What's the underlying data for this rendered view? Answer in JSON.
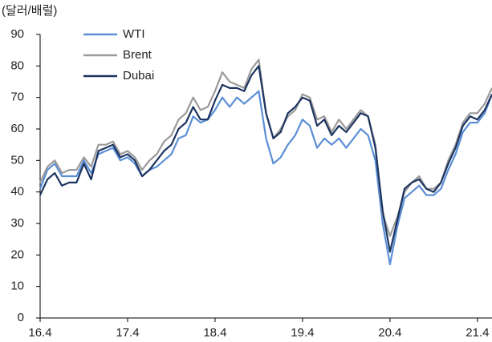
{
  "chart_data": {
    "type": "line",
    "y_label": "(달러/배럴)",
    "categories": [
      "16.4",
      null,
      null,
      null,
      null,
      null,
      null,
      null,
      null,
      null,
      null,
      null,
      "17.4",
      null,
      null,
      null,
      null,
      null,
      null,
      null,
      null,
      null,
      null,
      null,
      "18.4",
      null,
      null,
      null,
      null,
      null,
      null,
      null,
      null,
      null,
      null,
      null,
      "19.4",
      null,
      null,
      null,
      null,
      null,
      null,
      null,
      null,
      null,
      null,
      null,
      "20.4",
      null,
      null,
      null,
      null,
      null,
      null,
      null,
      null,
      null,
      null,
      null,
      "21.4",
      null,
      null
    ],
    "series": [
      {
        "name": "WTI",
        "color": "#5b8fd6",
        "values": [
          41,
          47,
          49,
          45,
          45,
          45,
          50,
          46,
          52,
          53,
          54,
          50,
          51,
          49,
          45,
          47,
          48,
          50,
          52,
          57,
          58,
          64,
          62,
          63,
          66,
          70,
          67,
          70,
          68,
          70,
          72,
          57,
          49,
          51,
          55,
          58,
          63,
          61,
          54,
          57,
          55,
          57,
          54,
          57,
          60,
          58,
          50,
          30,
          17,
          29,
          38,
          40,
          42,
          39,
          39,
          41,
          47,
          52,
          59,
          62,
          62,
          65,
          71
        ]
      },
      {
        "name": "Brent",
        "color": "#9a9a9a",
        "values": [
          43,
          48,
          50,
          46,
          47,
          47,
          51,
          48,
          55,
          55,
          56,
          52,
          53,
          51,
          47,
          50,
          52,
          56,
          58,
          63,
          65,
          70,
          66,
          67,
          72,
          78,
          75,
          74,
          73,
          79,
          82,
          65,
          57,
          60,
          64,
          66,
          71,
          70,
          63,
          64,
          59,
          63,
          60,
          63,
          66,
          64,
          55,
          33,
          26,
          32,
          40,
          43,
          45,
          41,
          41,
          43,
          50,
          55,
          62,
          65,
          65,
          68,
          73
        ]
      },
      {
        "name": "Dubai",
        "color": "#1c3460",
        "values": [
          39,
          44,
          46,
          42,
          43,
          43,
          49,
          44,
          53,
          54,
          55,
          51,
          52,
          50,
          45,
          47,
          50,
          53,
          55,
          60,
          62,
          67,
          63,
          63,
          69,
          74,
          73,
          73,
          72,
          77,
          80,
          65,
          57,
          59,
          65,
          67,
          70,
          69,
          61,
          63,
          58,
          61,
          59,
          62,
          65,
          64,
          54,
          34,
          21,
          31,
          41,
          43,
          44,
          41,
          40,
          43,
          49,
          54,
          61,
          64,
          63,
          66,
          71
        ]
      }
    ],
    "ylim": [
      0,
      90
    ],
    "yticks": [
      0,
      10,
      20,
      30,
      40,
      50,
      60,
      70,
      80,
      90
    ]
  }
}
